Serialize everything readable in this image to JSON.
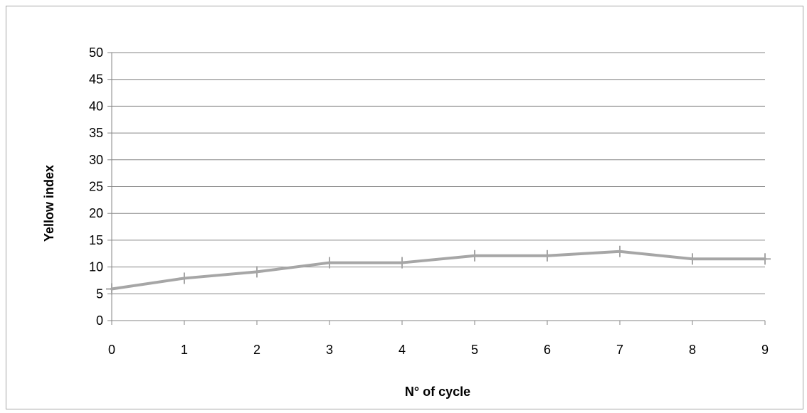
{
  "chart_data": {
    "type": "line",
    "title": "",
    "xlabel": "N° of cycle",
    "ylabel": "Yellow index",
    "x": [
      0,
      1,
      2,
      3,
      4,
      5,
      6,
      7,
      8,
      9
    ],
    "x_ticks": [
      "0",
      "1",
      "2",
      "3",
      "4",
      "5",
      "6",
      "7",
      "8",
      "9"
    ],
    "y_ticks": [
      "0",
      "5",
      "10",
      "15",
      "20",
      "25",
      "30",
      "35",
      "40",
      "45",
      "50"
    ],
    "xlim": [
      0,
      9
    ],
    "ylim": [
      0,
      50
    ],
    "grid": "horizontal",
    "legend": "none",
    "series": [
      {
        "values": [
          5.9,
          7.9,
          9.1,
          10.8,
          10.8,
          12.1,
          12.1,
          12.9,
          11.5,
          11.5
        ],
        "color": "#a6a6a6",
        "marker": "plus"
      }
    ],
    "colors": {
      "gridline": "#868686",
      "axis": "#868686",
      "frame": "#a6a6a6"
    }
  }
}
